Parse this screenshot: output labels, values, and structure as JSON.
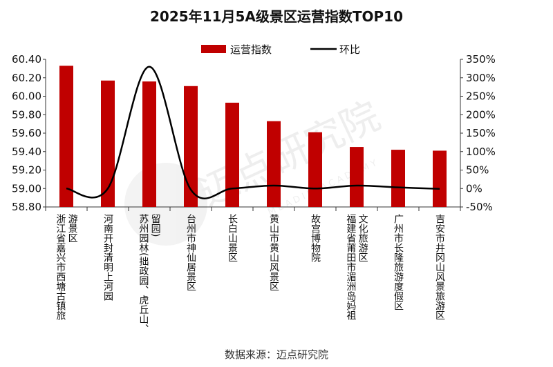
{
  "chart_data": {
    "type": "bar",
    "title": "2025年11月5A级景区运营指数TOP10",
    "categories": [
      "浙江省嘉兴市西塘古镇旅游景区",
      "河南开封清明上河园",
      "苏州园林(拙政园、虎丘山、留园)",
      "台州市神仙居景区",
      "长白山景区",
      "黄山市黄山风景区",
      "故宫博物院",
      "福建省莆田市湄洲岛妈祖文化旅游区",
      "广州市长隆旅游度假区",
      "吉安市井冈山风景旅游区"
    ],
    "category_lines": [
      [
        "浙江省嘉兴市西塘古镇旅",
        "游景区"
      ],
      [
        "河南开封清明上河园"
      ],
      [
        "苏州园林(拙政园、虎丘山、",
        "留园)"
      ],
      [
        "台州市神仙居景区"
      ],
      [
        "长白山景区"
      ],
      [
        "黄山市黄山风景区"
      ],
      [
        "故宫博物院"
      ],
      [
        "福建省莆田市湄洲岛妈祖",
        "文化旅游区"
      ],
      [
        "广州市长隆旅游度假区"
      ],
      [
        "吉安市井冈山风景旅游区"
      ]
    ],
    "series": [
      {
        "name": "运营指数",
        "type": "bar",
        "axis": "left",
        "color": "#c00000",
        "values": [
          60.33,
          60.17,
          60.16,
          60.11,
          59.93,
          59.73,
          59.61,
          59.45,
          59.42,
          59.41
        ]
      },
      {
        "name": "环比",
        "type": "line",
        "axis": "right",
        "color": "#000000",
        "smooth": true,
        "values": [
          0,
          0,
          330,
          -3,
          0,
          8,
          0,
          8,
          3,
          -1
        ]
      }
    ],
    "y_left": {
      "min": 58.8,
      "max": 60.4,
      "step": 0.2,
      "ticks": [
        "58.80",
        "59.00",
        "59.20",
        "59.40",
        "59.60",
        "59.80",
        "60.00",
        "60.20",
        "60.40"
      ]
    },
    "y_right": {
      "min": -50,
      "max": 350,
      "step": 50,
      "ticks": [
        "-50%",
        "0%",
        "50%",
        "100%",
        "150%",
        "200%",
        "250%",
        "300%",
        "350%"
      ]
    },
    "legend_position": "top-center",
    "grid": false
  },
  "source": "数据来源：迈点研究院",
  "watermark": {
    "text": "迈点研究院",
    "subtext": "MEADIN ACADEMY"
  }
}
